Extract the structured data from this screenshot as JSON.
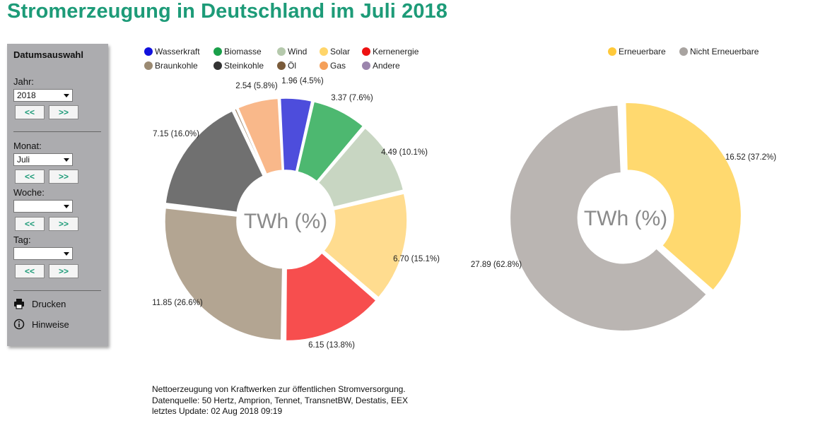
{
  "title": "Stromerzeugung in Deutschland im Juli 2018",
  "sidebar": {
    "heading": "Datumsauswahl",
    "year_label": "Jahr:",
    "year_value": "2018",
    "month_label": "Monat:",
    "month_value": "Juli",
    "week_label": "Woche:",
    "week_value": "",
    "day_label": "Tag:",
    "day_value": "",
    "prev_label": "<<",
    "next_label": ">>",
    "print_label": "Drucken",
    "notes_label": "Hinweise"
  },
  "footer": {
    "line1": "Nettoerzeugung von Kraftwerken zur öffentlichen Stromversorgung.",
    "line2": "Datenquelle: 50 Hertz, Amprion, Tennet, TransnetBW, Destatis, EEX",
    "line3": "letztes Update: 02 Aug 2018 09:19"
  },
  "chart_data": [
    {
      "type": "pie",
      "variant": "donut",
      "center_label": "TWh (%)",
      "legend": [
        "Wasserkraft",
        "Biomasse",
        "Wind",
        "Solar",
        "Kernenergie",
        "Braunkohle",
        "Steinkohle",
        "Öl",
        "Gas",
        "Andere"
      ],
      "legend_colors": [
        "#1111dd",
        "#1aa04a",
        "#b5c9ac",
        "#ffd56a",
        "#ee1111",
        "#9b8a72",
        "#333333",
        "#7a5b3a",
        "#f5a05a",
        "#9b85ad"
      ],
      "slices": [
        {
          "name": "Wasserkraft",
          "value": 1.96,
          "percent": 4.5,
          "color": "#4d4ddc",
          "label": "1.96 (4.5%)"
        },
        {
          "name": "Biomasse",
          "value": 3.37,
          "percent": 7.6,
          "color": "#4db870",
          "label": "3.37 (7.6%)"
        },
        {
          "name": "Wind",
          "value": 4.49,
          "percent": 10.1,
          "color": "#c8d6c2",
          "label": "4.49 (10.1%)"
        },
        {
          "name": "Solar",
          "value": 6.7,
          "percent": 15.1,
          "color": "#ffdc8f",
          "label": "6.70 (15.1%)"
        },
        {
          "name": "Kernenergie",
          "value": 6.15,
          "percent": 13.8,
          "color": "#f74e4e",
          "label": "6.15 (13.8%)"
        },
        {
          "name": "Braunkohle",
          "value": 11.85,
          "percent": 26.6,
          "color": "#b3a592",
          "label": "11.85 (26.6%)"
        },
        {
          "name": "Steinkohle",
          "value": 7.15,
          "percent": 16.0,
          "color": "#707070",
          "label": "7.15 (16.0%)"
        },
        {
          "name": "Öl",
          "value": 0.2,
          "percent": 0.4,
          "color": "#9b8266",
          "label": ""
        },
        {
          "name": "Gas",
          "value": 2.54,
          "percent": 5.8,
          "color": "#f9b88a",
          "label": "2.54 (5.8%)"
        }
      ]
    },
    {
      "type": "pie",
      "variant": "donut",
      "center_label": "TWh (%)",
      "legend": [
        "Erneuerbare",
        "Nicht Erneuerbare"
      ],
      "legend_colors": [
        "#ffc93a",
        "#a8a3a0"
      ],
      "slices": [
        {
          "name": "Erneuerbare",
          "value": 16.52,
          "percent": 37.2,
          "color": "#ffd96f",
          "label": "16.52 (37.2%)"
        },
        {
          "name": "Nicht Erneuerbare",
          "value": 27.89,
          "percent": 62.8,
          "color": "#bab5b2",
          "label": "27.89 (62.8%)"
        }
      ]
    }
  ]
}
